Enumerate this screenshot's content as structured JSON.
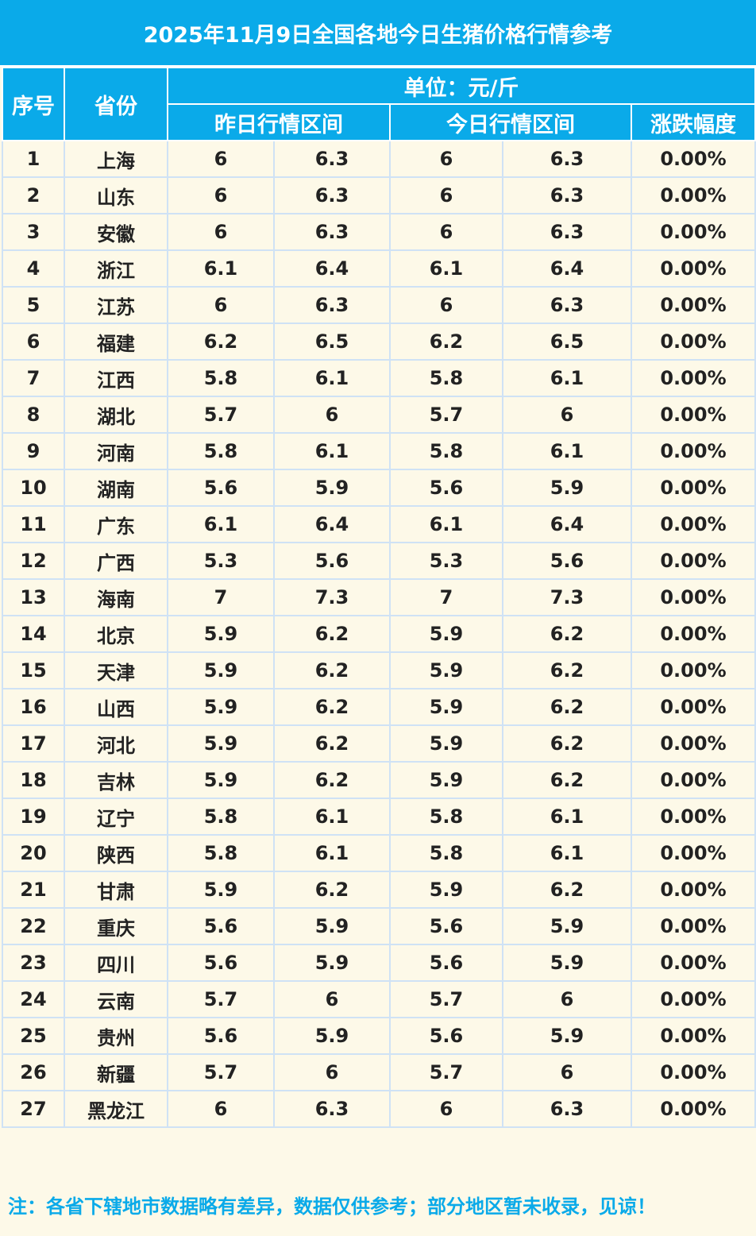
{
  "title": "2025年11月9日全国各地今日生猪价格行情参考",
  "headers": {
    "index": "序号",
    "province": "省份",
    "unit": "单位：元/斤",
    "yesterday": "昨日行情区间",
    "today": "今日行情区间",
    "change": "涨跌幅度"
  },
  "rows": [
    {
      "no": "1",
      "province": "上海",
      "y_low": "6",
      "y_high": "6.3",
      "t_low": "6",
      "t_high": "6.3",
      "change": "0.00%"
    },
    {
      "no": "2",
      "province": "山东",
      "y_low": "6",
      "y_high": "6.3",
      "t_low": "6",
      "t_high": "6.3",
      "change": "0.00%"
    },
    {
      "no": "3",
      "province": "安徽",
      "y_low": "6",
      "y_high": "6.3",
      "t_low": "6",
      "t_high": "6.3",
      "change": "0.00%"
    },
    {
      "no": "4",
      "province": "浙江",
      "y_low": "6.1",
      "y_high": "6.4",
      "t_low": "6.1",
      "t_high": "6.4",
      "change": "0.00%"
    },
    {
      "no": "5",
      "province": "江苏",
      "y_low": "6",
      "y_high": "6.3",
      "t_low": "6",
      "t_high": "6.3",
      "change": "0.00%"
    },
    {
      "no": "6",
      "province": "福建",
      "y_low": "6.2",
      "y_high": "6.5",
      "t_low": "6.2",
      "t_high": "6.5",
      "change": "0.00%"
    },
    {
      "no": "7",
      "province": "江西",
      "y_low": "5.8",
      "y_high": "6.1",
      "t_low": "5.8",
      "t_high": "6.1",
      "change": "0.00%"
    },
    {
      "no": "8",
      "province": "湖北",
      "y_low": "5.7",
      "y_high": "6",
      "t_low": "5.7",
      "t_high": "6",
      "change": "0.00%"
    },
    {
      "no": "9",
      "province": "河南",
      "y_low": "5.8",
      "y_high": "6.1",
      "t_low": "5.8",
      "t_high": "6.1",
      "change": "0.00%"
    },
    {
      "no": "10",
      "province": "湖南",
      "y_low": "5.6",
      "y_high": "5.9",
      "t_low": "5.6",
      "t_high": "5.9",
      "change": "0.00%"
    },
    {
      "no": "11",
      "province": "广东",
      "y_low": "6.1",
      "y_high": "6.4",
      "t_low": "6.1",
      "t_high": "6.4",
      "change": "0.00%"
    },
    {
      "no": "12",
      "province": "广西",
      "y_low": "5.3",
      "y_high": "5.6",
      "t_low": "5.3",
      "t_high": "5.6",
      "change": "0.00%"
    },
    {
      "no": "13",
      "province": "海南",
      "y_low": "7",
      "y_high": "7.3",
      "t_low": "7",
      "t_high": "7.3",
      "change": "0.00%"
    },
    {
      "no": "14",
      "province": "北京",
      "y_low": "5.9",
      "y_high": "6.2",
      "t_low": "5.9",
      "t_high": "6.2",
      "change": "0.00%"
    },
    {
      "no": "15",
      "province": "天津",
      "y_low": "5.9",
      "y_high": "6.2",
      "t_low": "5.9",
      "t_high": "6.2",
      "change": "0.00%"
    },
    {
      "no": "16",
      "province": "山西",
      "y_low": "5.9",
      "y_high": "6.2",
      "t_low": "5.9",
      "t_high": "6.2",
      "change": "0.00%"
    },
    {
      "no": "17",
      "province": "河北",
      "y_low": "5.9",
      "y_high": "6.2",
      "t_low": "5.9",
      "t_high": "6.2",
      "change": "0.00%"
    },
    {
      "no": "18",
      "province": "吉林",
      "y_low": "5.9",
      "y_high": "6.2",
      "t_low": "5.9",
      "t_high": "6.2",
      "change": "0.00%"
    },
    {
      "no": "19",
      "province": "辽宁",
      "y_low": "5.8",
      "y_high": "6.1",
      "t_low": "5.8",
      "t_high": "6.1",
      "change": "0.00%"
    },
    {
      "no": "20",
      "province": "陕西",
      "y_low": "5.8",
      "y_high": "6.1",
      "t_low": "5.8",
      "t_high": "6.1",
      "change": "0.00%"
    },
    {
      "no": "21",
      "province": "甘肃",
      "y_low": "5.9",
      "y_high": "6.2",
      "t_low": "5.9",
      "t_high": "6.2",
      "change": "0.00%"
    },
    {
      "no": "22",
      "province": "重庆",
      "y_low": "5.6",
      "y_high": "5.9",
      "t_low": "5.6",
      "t_high": "5.9",
      "change": "0.00%"
    },
    {
      "no": "23",
      "province": "四川",
      "y_low": "5.6",
      "y_high": "5.9",
      "t_low": "5.6",
      "t_high": "5.9",
      "change": "0.00%"
    },
    {
      "no": "24",
      "province": "云南",
      "y_low": "5.7",
      "y_high": "6",
      "t_low": "5.7",
      "t_high": "6",
      "change": "0.00%"
    },
    {
      "no": "25",
      "province": "贵州",
      "y_low": "5.6",
      "y_high": "5.9",
      "t_low": "5.6",
      "t_high": "5.9",
      "change": "0.00%"
    },
    {
      "no": "26",
      "province": "新疆",
      "y_low": "5.7",
      "y_high": "6",
      "t_low": "5.7",
      "t_high": "6",
      "change": "0.00%"
    },
    {
      "no": "27",
      "province": "黑龙江",
      "y_low": "6",
      "y_high": "6.3",
      "t_low": "6",
      "t_high": "6.3",
      "change": "0.00%"
    }
  ],
  "footer": "注：各省下辖地市数据略有差异，数据仅供参考；部分地区暂未收录，见谅！",
  "colors": {
    "header_bg": "#0aaae9",
    "body_bg": "#fdf9e8",
    "grid": "#cfe2f5",
    "text": "#222222",
    "footer_text": "#0aaae9"
  }
}
